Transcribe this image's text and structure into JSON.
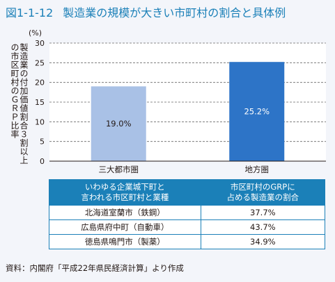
{
  "figure": {
    "number": "図1-1-12",
    "title": "製造業の規模が大きい市町村の割合と具体例"
  },
  "chart_data": {
    "type": "bar",
    "unit_label": "(%)",
    "ylabel": "製造業の付加価値割合３割以上の市区町村のＧＲＰ比率",
    "categories": [
      "三大都市圏",
      "地方圏"
    ],
    "values": [
      19.0,
      25.2
    ],
    "value_labels": [
      "19.0%",
      "25.2%"
    ],
    "bar_colors": [
      "#a9c1e6",
      "#2d74c7"
    ],
    "ylim": [
      0,
      30
    ],
    "yticks": [
      0,
      5,
      10,
      15,
      20,
      25,
      30
    ],
    "grid": true
  },
  "table": {
    "headers": [
      [
        "いわゆる企業城下町と",
        "言われる市区町村と業種"
      ],
      [
        "市区町村のGRPに",
        "占める製造業の割合"
      ]
    ],
    "rows": [
      [
        "北海道室蘭市（鉄鋼）",
        "37.7%"
      ],
      [
        "広島県府中町（自動車）",
        "43.7%"
      ],
      [
        "徳島県鳴門市（製薬）",
        "34.9%"
      ]
    ]
  },
  "source": "資料：内閣府「平成22年県民経済計算」より作成",
  "colors": {
    "accent": "#1b80b8",
    "background": "#f3f5fa"
  }
}
